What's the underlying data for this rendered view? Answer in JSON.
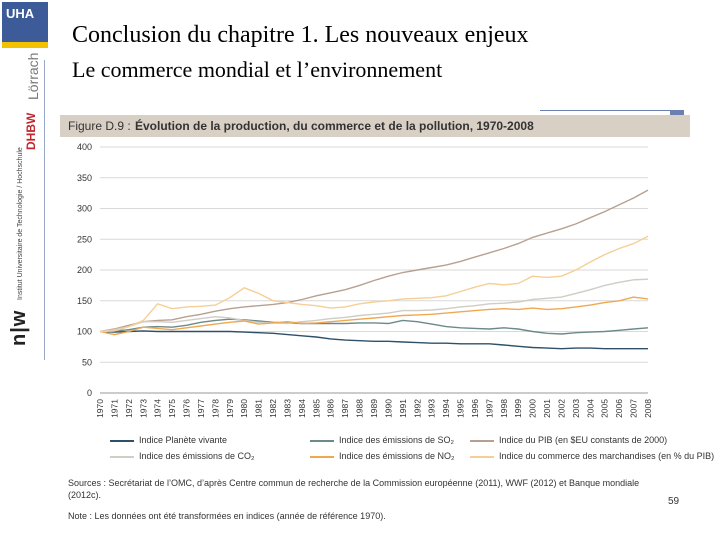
{
  "slide": {
    "title": "Conclusion du chapitre 1. Les nouveaux enjeux",
    "subtitle": "Le commerce mondial et l’environnement",
    "page_number": "59"
  },
  "sidebar": {
    "logo_text": "UHA",
    "loerrach": "Lörrach",
    "dhbw": "DHBW",
    "institute": "Institut Universitaire de Technologie / Hochschule",
    "niw": "n|w"
  },
  "figure": {
    "label": "Figure D.9 :",
    "title": "Évolution de la production, du commerce et de la pollution, 1970-2008",
    "sources": "Sources : Secrétariat de l’OMC, d’après Centre commun de recherche de la Commission européenne (2011), WWF (2012) et Banque mondiale (2012c).",
    "note": "Note : Les données ont été transformées en indices (année de référence 1970)."
  },
  "chart_data": {
    "type": "line",
    "x": [
      1970,
      1971,
      1972,
      1973,
      1974,
      1975,
      1976,
      1977,
      1978,
      1979,
      1980,
      1981,
      1982,
      1983,
      1984,
      1985,
      1986,
      1987,
      1988,
      1989,
      1990,
      1991,
      1992,
      1993,
      1994,
      1995,
      1996,
      1997,
      1998,
      1999,
      2000,
      2001,
      2002,
      2003,
      2004,
      2005,
      2006,
      2007,
      2008
    ],
    "ylim": [
      0,
      400
    ],
    "yticks": [
      0,
      50,
      100,
      150,
      200,
      250,
      300,
      350,
      400
    ],
    "grid": true,
    "legend_position": "bottom",
    "series": [
      {
        "name": "Indice Planète vivante",
        "color": "#2e5068",
        "values": [
          100,
          99,
          100,
          101,
          100,
          100,
          100,
          100,
          100,
          100,
          99,
          98,
          97,
          95,
          93,
          91,
          88,
          86,
          85,
          84,
          84,
          83,
          82,
          81,
          81,
          80,
          80,
          80,
          78,
          76,
          74,
          73,
          72,
          73,
          73,
          72,
          72,
          72,
          72
        ]
      },
      {
        "name": "Indice des émissions de SO₂",
        "color": "#6b8a88",
        "values": [
          100,
          101,
          103,
          107,
          108,
          107,
          110,
          115,
          118,
          120,
          119,
          117,
          115,
          114,
          113,
          113,
          113,
          113,
          114,
          114,
          113,
          118,
          116,
          112,
          108,
          106,
          105,
          104,
          106,
          104,
          100,
          97,
          96,
          98,
          99,
          100,
          102,
          104,
          106
        ]
      },
      {
        "name": "Indice du PIB (en $EU constants de 2000)",
        "color": "#b8a090",
        "values": [
          100,
          104,
          110,
          116,
          118,
          119,
          124,
          128,
          133,
          137,
          140,
          142,
          144,
          147,
          152,
          158,
          163,
          168,
          175,
          183,
          190,
          196,
          200,
          204,
          208,
          214,
          221,
          228,
          235,
          243,
          253,
          260,
          267,
          275,
          285,
          295,
          306,
          317,
          330
        ]
      },
      {
        "name": "Indice des émissions de CO₂",
        "color": "#d0ccc6",
        "values": [
          100,
          103,
          108,
          116,
          116,
          115,
          118,
          121,
          124,
          122,
          118,
          115,
          114,
          113,
          116,
          118,
          121,
          123,
          126,
          128,
          130,
          134,
          134,
          135,
          137,
          140,
          142,
          145,
          146,
          148,
          152,
          154,
          156,
          162,
          168,
          175,
          180,
          184,
          185
        ]
      },
      {
        "name": "Indice des émissions de NO₂",
        "color": "#f0a850",
        "values": [
          100,
          95,
          100,
          107,
          105,
          103,
          106,
          109,
          112,
          115,
          117,
          112,
          114,
          116,
          113,
          114,
          116,
          118,
          120,
          122,
          124,
          126,
          127,
          128,
          130,
          132,
          134,
          136,
          137,
          136,
          138,
          136,
          137,
          140,
          143,
          147,
          150,
          156,
          153
        ]
      },
      {
        "name": "Indice du commerce des marchandises (en % du PIB)",
        "color": "#f5cf95",
        "values": [
          100,
          101,
          108,
          118,
          145,
          137,
          140,
          141,
          143,
          155,
          171,
          162,
          150,
          147,
          144,
          142,
          138,
          140,
          145,
          148,
          150,
          153,
          154,
          155,
          158,
          165,
          172,
          178,
          176,
          178,
          190,
          188,
          190,
          200,
          213,
          225,
          235,
          243,
          255
        ]
      }
    ]
  }
}
